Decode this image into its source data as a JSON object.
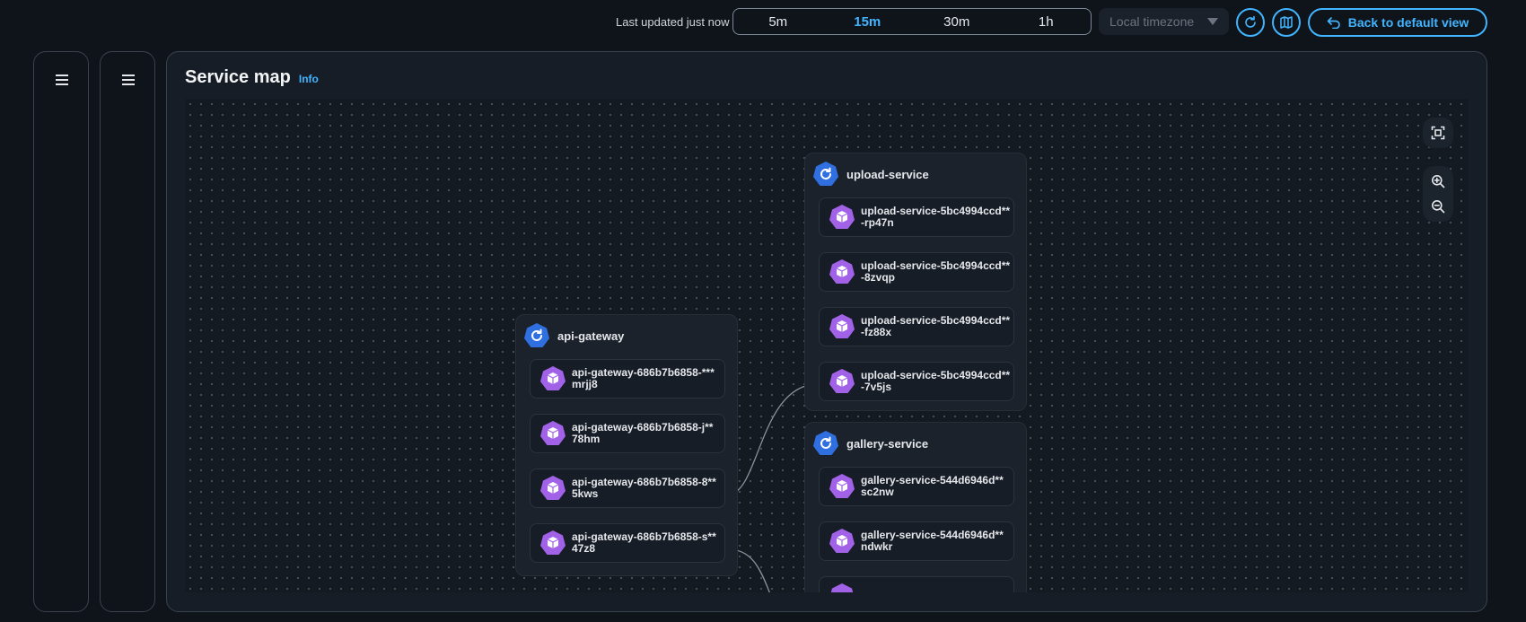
{
  "topbar": {
    "last_updated": "Last updated just now",
    "ranges": [
      "5m",
      "15m",
      "30m",
      "1h"
    ],
    "active_range": "15m",
    "timezone_placeholder": "Local timezone",
    "back_button": "Back to default view"
  },
  "page": {
    "title": "Service map",
    "info": "Info"
  },
  "groups": [
    {
      "name": "upload-service",
      "pods": [
        [
          "upload-service-5bc4994ccd**",
          "-rp47n"
        ],
        [
          "upload-service-5bc4994ccd**",
          "-8zvqp"
        ],
        [
          "upload-service-5bc4994ccd**",
          "-fz88x"
        ],
        [
          "upload-service-5bc4994ccd**",
          "-7v5js"
        ]
      ]
    },
    {
      "name": "api-gateway",
      "pods": [
        [
          "api-gateway-686b7b6858-***",
          "mrjj8"
        ],
        [
          "api-gateway-686b7b6858-j**",
          "78hm"
        ],
        [
          "api-gateway-686b7b6858-8**",
          "5kws"
        ],
        [
          "api-gateway-686b7b6858-s**",
          "47z8"
        ]
      ]
    },
    {
      "name": "gallery-service",
      "pods": [
        [
          "gallery-service-544d6946d**",
          "sc2nw"
        ],
        [
          "gallery-service-544d6946d**",
          "ndwkr"
        ]
      ]
    }
  ],
  "colors": {
    "accent": "#42b4ff",
    "service_icon": "#2f6fe0",
    "pod_icon": "#a162e8",
    "background": "#0f141a"
  },
  "icons": {
    "refresh": "refresh-icon",
    "map": "map-icon",
    "back": "undo-arrow-icon",
    "fit": "fit-view-icon",
    "zoom_in": "zoom-in-icon",
    "zoom_out": "zoom-out-icon",
    "service": "service-icon",
    "pod": "pod-cube-icon"
  }
}
